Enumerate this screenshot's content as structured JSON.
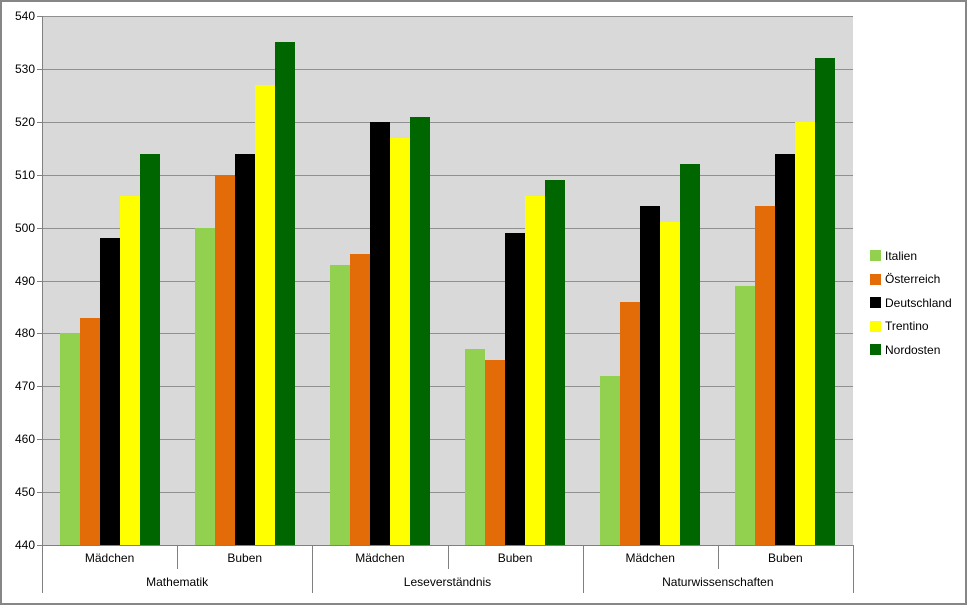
{
  "chart_data": {
    "type": "bar",
    "title": "",
    "plot_bg": "#d9d9d9",
    "gridline_color": "#909090",
    "axis_color": "#808080",
    "grid": true,
    "legend_position": "right",
    "y_axis": {
      "min": 440,
      "max": 540,
      "step": 10,
      "ticks": [
        "440",
        "450",
        "460",
        "470",
        "480",
        "490",
        "500",
        "510",
        "520",
        "530",
        "540"
      ]
    },
    "group_labels": [
      "Mädchen",
      "Buben",
      "Mädchen",
      "Buben",
      "Mädchen",
      "Buben"
    ],
    "category_labels": [
      "Mathematik",
      "Leseverständnis",
      "Naturwissenschaften"
    ],
    "series": [
      {
        "name": "Italien",
        "color": "#92D050",
        "values": [
          480,
          500,
          493,
          477,
          472,
          489
        ]
      },
      {
        "name": "Österreich",
        "color": "#E36C09",
        "values": [
          483,
          510,
          495,
          475,
          486,
          504
        ]
      },
      {
        "name": "Deutschland",
        "color": "#000000",
        "values": [
          498,
          514,
          520,
          499,
          504,
          514
        ]
      },
      {
        "name": "Trentino",
        "color": "#FFFF00",
        "values": [
          506,
          527,
          517,
          506,
          501,
          520
        ]
      },
      {
        "name": "Nordosten",
        "color": "#006600",
        "values": [
          514,
          535,
          521,
          509,
          512,
          532
        ]
      }
    ]
  }
}
